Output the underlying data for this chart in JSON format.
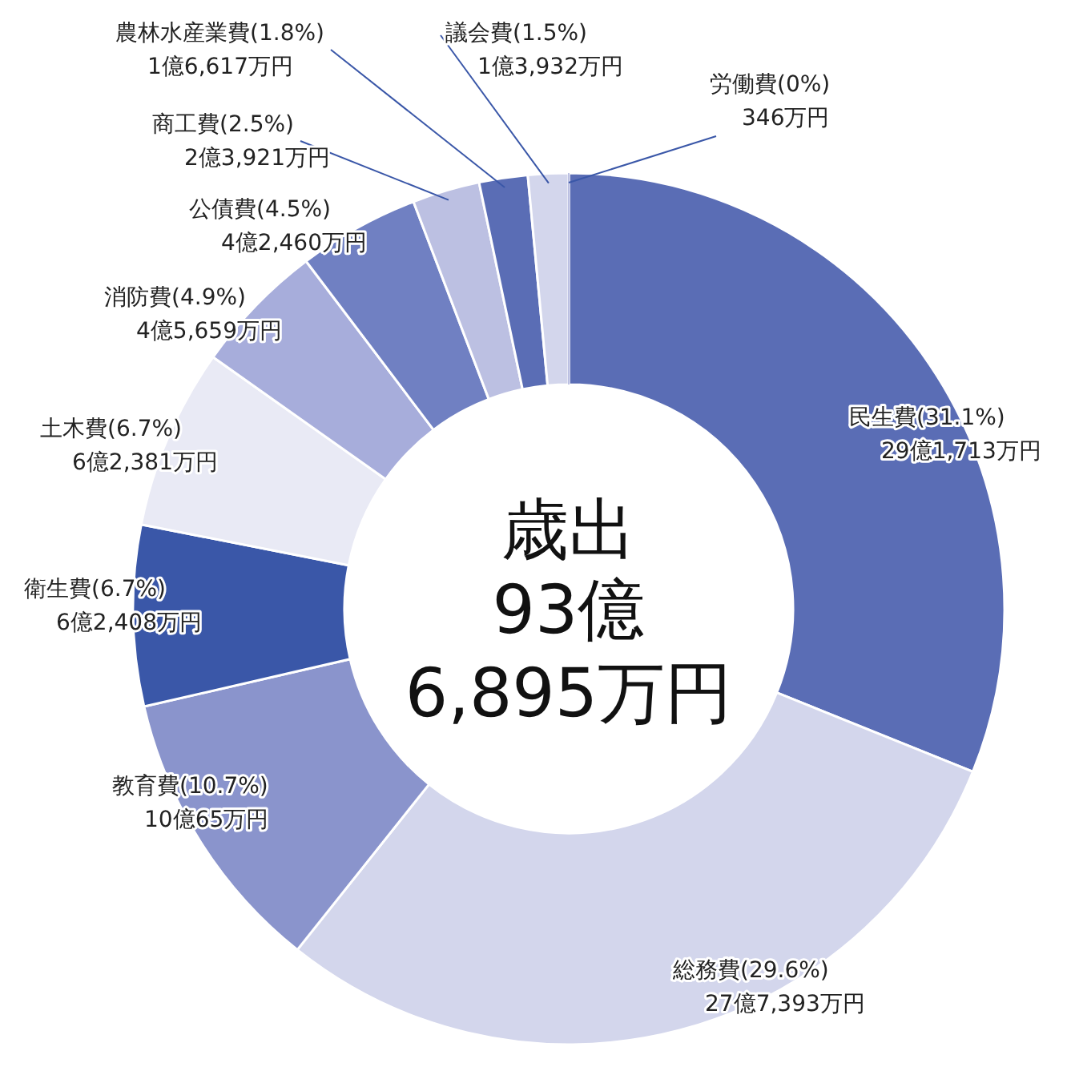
{
  "chart_data": {
    "type": "donut",
    "title": "歳出",
    "subtitle": "93億6,895万円",
    "categories": [
      "民生費",
      "総務費",
      "教育費",
      "衛生費",
      "土木費",
      "消防費",
      "公債費",
      "商工費",
      "農林水産業費",
      "議会費",
      "労働費"
    ],
    "values": [
      31.1,
      29.6,
      10.7,
      6.7,
      6.7,
      4.9,
      4.5,
      2.5,
      1.8,
      1.5,
      0
    ],
    "value_labels": [
      "(31.1%)",
      "(29.6%)",
      "(10.7%)",
      "(6.7%)",
      "(6.7%)",
      "(4.9%)",
      "(4.5%)",
      "(2.5%)",
      "(1.8%)",
      "(1.5%)",
      "(0%)"
    ],
    "annotations": [
      "29億1,713万円",
      "27億7,393万円",
      "10億65万円",
      "6億2,408万円",
      "6億2,381万円",
      "4億5,659万円",
      "4億2,460万円",
      "2億3,921万円",
      "1億6,617万円",
      "1億3,932万円",
      "346万円"
    ],
    "colors": [
      "#5a6db5",
      "#d3d6ec",
      "#8a94cc",
      "#3a57a8",
      "#e9eaf5",
      "#a7addb",
      "#7080c2",
      "#bcc0e2",
      "#5a6db5",
      "#d3d6ec",
      "#bcc0e2"
    ]
  }
}
